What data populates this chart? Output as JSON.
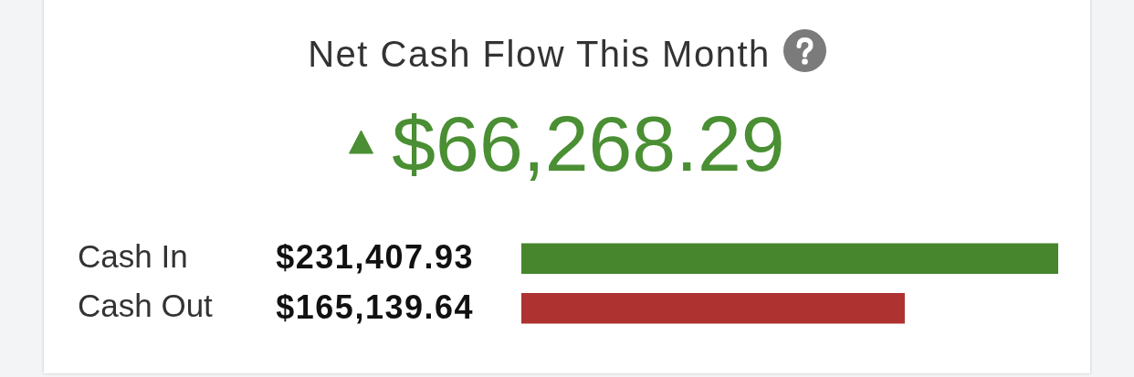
{
  "chart_data": {
    "type": "bar",
    "orientation": "horizontal",
    "title": "Net Cash Flow This Month",
    "subtitle": "$66,268.29",
    "categories": [
      "Cash In",
      "Cash Out"
    ],
    "values": [
      231407.93,
      165139.64
    ],
    "colors": [
      "#47862c",
      "#ad3230"
    ],
    "value_labels": [
      "$231,407.93",
      "$165,139.64"
    ],
    "xlim": [
      0,
      231407.93
    ],
    "tick_labels": "y",
    "grid": false,
    "legend": false
  }
}
